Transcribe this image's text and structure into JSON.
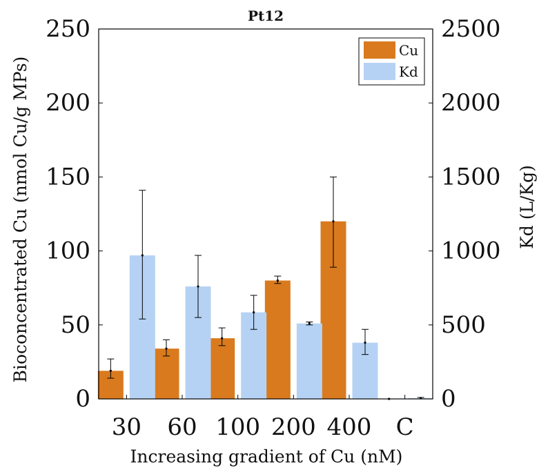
{
  "chart_data": {
    "type": "bar",
    "title": "Pt12",
    "xlabel": "Increasing gradient of Cu (nM)",
    "ylabel_left": "Bioconcentrated Cu (nmol Cu/g MPs)",
    "ylabel_right": "Kd (L/Kg)",
    "categories": [
      "30",
      "60",
      "100",
      "200",
      "400",
      "C"
    ],
    "ylim_left": [
      0,
      250
    ],
    "ylim_right": [
      0,
      2500
    ],
    "yticks_left": [
      "0",
      "50",
      "100",
      "150",
      "200",
      "250"
    ],
    "yticks_right": [
      "0",
      "500",
      "1000",
      "1500",
      "2000",
      "2500"
    ],
    "grid": false,
    "legend_position": "top-right",
    "series": [
      {
        "name": "Cu",
        "axis": "left",
        "color": "#d97a1e",
        "values": [
          19,
          34,
          41,
          80,
          120,
          0
        ],
        "error_low": [
          14,
          29,
          36,
          78,
          89,
          0
        ],
        "error_high": [
          27,
          40,
          48,
          83,
          150,
          0
        ]
      },
      {
        "name": "Kd",
        "axis": "right",
        "color": "#b5d2f4",
        "values": [
          970,
          760,
          585,
          510,
          380,
          5
        ],
        "error_low": [
          540,
          550,
          470,
          500,
          300,
          0
        ],
        "error_high": [
          1410,
          970,
          700,
          520,
          470,
          10
        ]
      }
    ]
  }
}
